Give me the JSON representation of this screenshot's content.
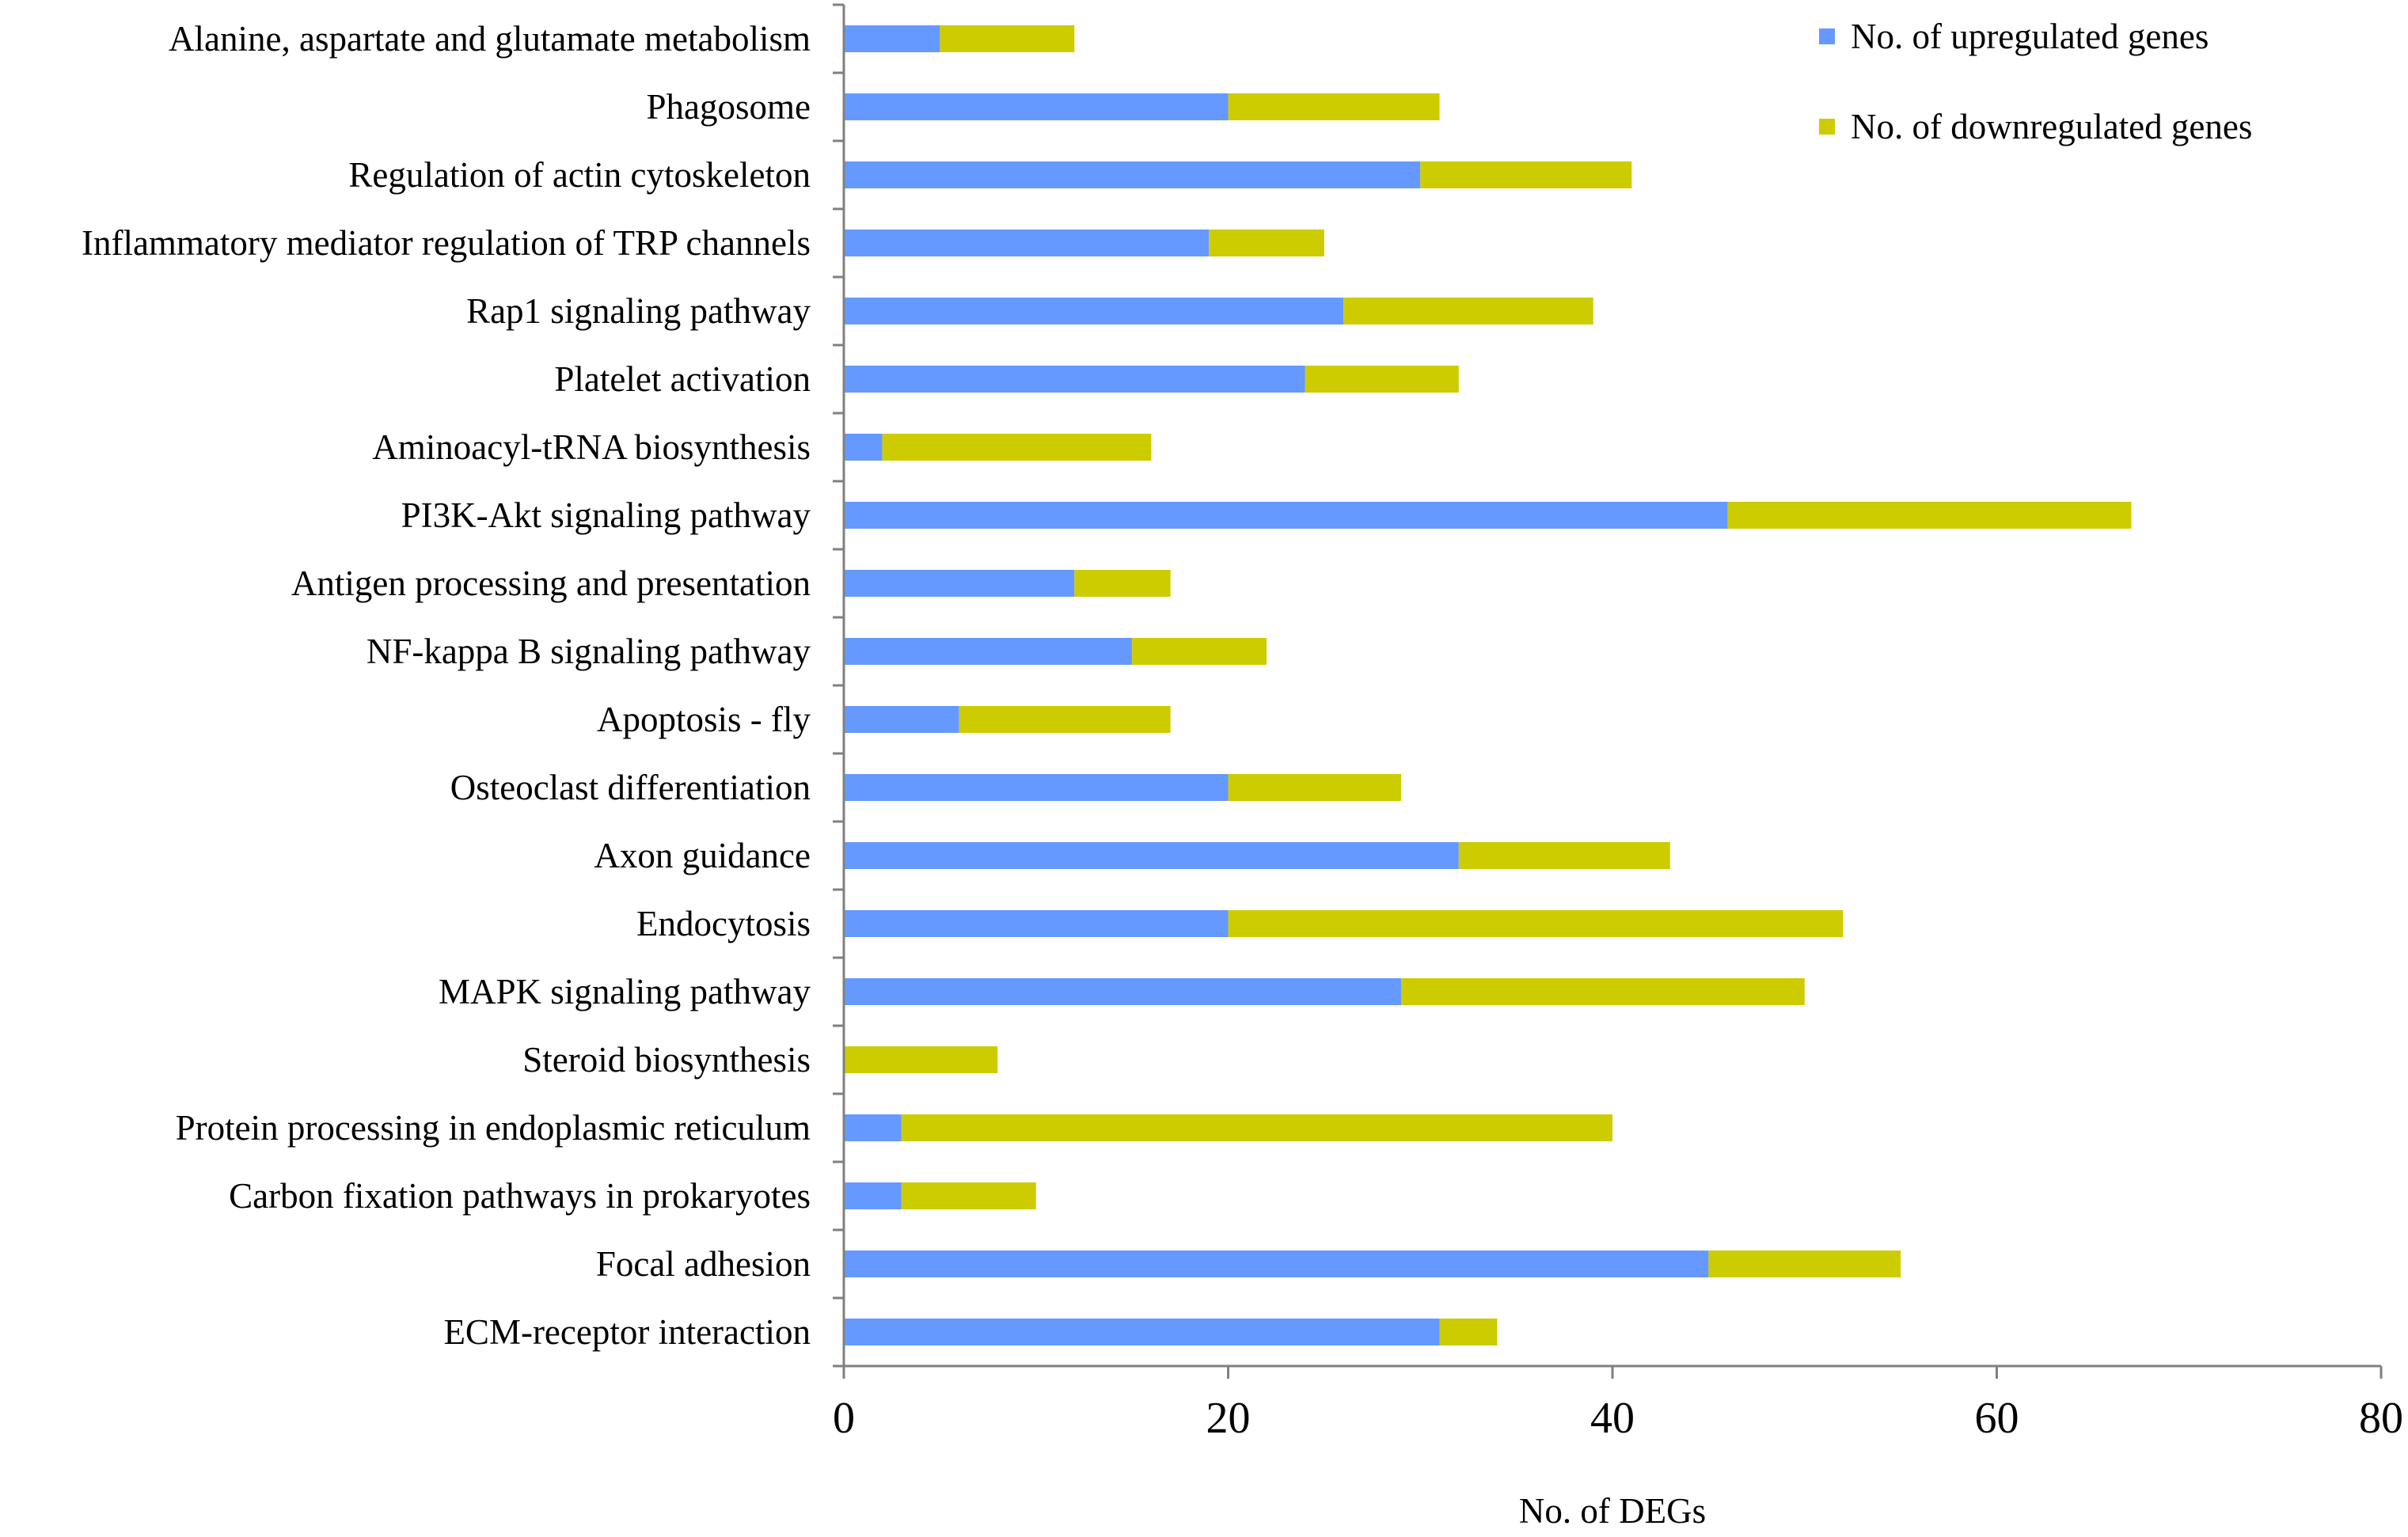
{
  "chart_data": {
    "type": "bar",
    "orientation": "horizontal",
    "stacked": true,
    "title": "",
    "xlabel": "No. of  DEGs",
    "ylabel": "",
    "xlim": [
      0,
      80
    ],
    "xticks": [
      0,
      20,
      40,
      60,
      80
    ],
    "grid": false,
    "legend_position": "top-right",
    "categories": [
      "Alanine, aspartate and glutamate metabolism",
      "Phagosome",
      "Regulation of actin cytoskeleton",
      "Inflammatory mediator regulation of TRP channels",
      "Rap1 signaling pathway",
      "Platelet activation",
      "Aminoacyl-tRNA biosynthesis",
      "PI3K-Akt signaling pathway",
      "Antigen processing and presentation",
      "NF-kappa B signaling pathway",
      "Apoptosis - fly",
      "Osteoclast differentiation",
      "Axon guidance",
      "Endocytosis",
      "MAPK signaling pathway",
      "Steroid biosynthesis",
      "Protein processing in endoplasmic reticulum",
      "Carbon fixation pathways in prokaryotes",
      "Focal adhesion",
      "ECM-receptor interaction"
    ],
    "series": [
      {
        "name": "No. of upregulated genes",
        "color": "#6699FF",
        "values": [
          5,
          20,
          30,
          19,
          26,
          24,
          2,
          46,
          12,
          15,
          6,
          20,
          32,
          20,
          29,
          0,
          3,
          3,
          45,
          31
        ]
      },
      {
        "name": "No. of downregulated genes",
        "color": "#CCCC00",
        "values": [
          7,
          11,
          11,
          6,
          13,
          8,
          14,
          21,
          5,
          7,
          11,
          9,
          11,
          32,
          21,
          8,
          37,
          7,
          10,
          3
        ]
      }
    ]
  }
}
